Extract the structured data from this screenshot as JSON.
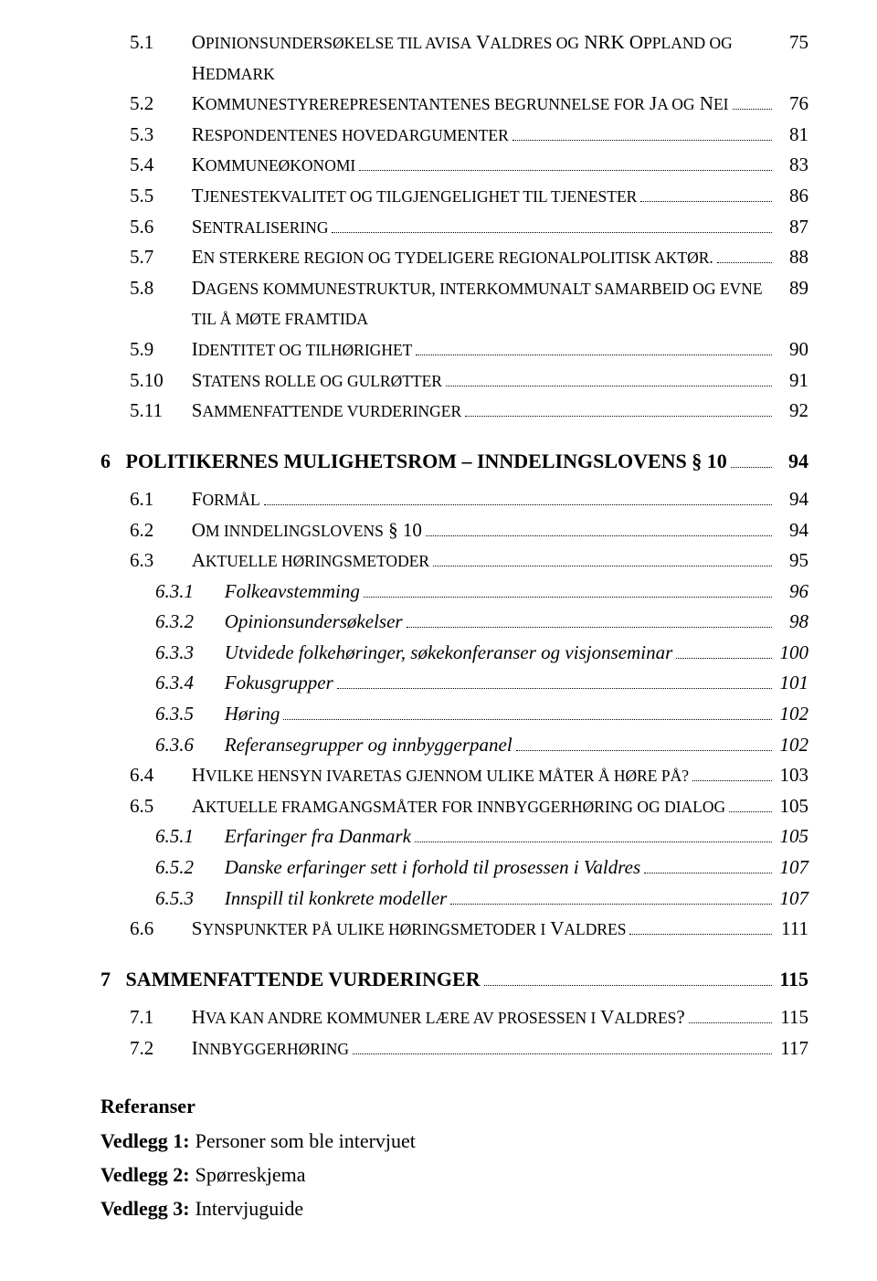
{
  "toc": [
    {
      "level": "section",
      "num": "5.1",
      "title_html": "O<small>PINIONSUNDERSØKELSE TIL AVISA</small> V<small>ALDRES OG</small> NRK O<small>PPLAND OG</small> H<small>EDMARK</small>",
      "page": "75"
    },
    {
      "level": "section",
      "num": "5.2",
      "title_html": "K<small>OMMUNESTYREREPRESENTANTENES BEGRUNNELSE FOR</small> J<small>A OG</small> N<small>EI</small>",
      "page": "76"
    },
    {
      "level": "section",
      "num": "5.3",
      "title_html": "R<small>ESPONDENTENES HOVEDARGUMENTER</small>",
      "page": "81"
    },
    {
      "level": "section",
      "num": "5.4",
      "title_html": "K<small>OMMUNEØKONOMI</small>",
      "page": "83"
    },
    {
      "level": "section",
      "num": "5.5",
      "title_html": "T<small>JENESTEKVALITET OG TILGJENGELIGHET TIL TJENESTER</small>",
      "page": "86"
    },
    {
      "level": "section",
      "num": "5.6",
      "title_html": "S<small>ENTRALISERING</small>",
      "page": "87"
    },
    {
      "level": "section",
      "num": "5.7",
      "title_html": "E<small>N STERKERE REGION OG TYDELIGERE REGIONALPOLITISK AKTØR.</small>",
      "page": "88"
    },
    {
      "level": "section",
      "num": "5.8",
      "title_html": "D<small>AGENS KOMMUNESTRUKTUR, INTERKOMMUNALT SAMARBEID OG EVNE TIL Å MØTE FRAMTIDA</small>",
      "page": "89"
    },
    {
      "level": "section",
      "num": "5.9",
      "title_html": "I<small>DENTITET OG TILHØRIGHET</small>",
      "page": "90"
    },
    {
      "level": "section",
      "num": "5.10",
      "title_html": "S<small>TATENS ROLLE OG GULRØTTER</small>",
      "page": "91"
    },
    {
      "level": "section",
      "num": "5.11",
      "title_html": "S<small>AMMENFATTENDE VURDERINGER</small>",
      "page": "92"
    },
    {
      "level": "chapter",
      "num": "6",
      "title_html": "POLITIKERNES MULIGHETSROM – INNDELINGSLOVENS § 10",
      "page": "94"
    },
    {
      "level": "section",
      "num": "6.1",
      "title_html": "F<small>ORMÅL</small>",
      "page": "94"
    },
    {
      "level": "section",
      "num": "6.2",
      "title_html": "O<small>M INNDELINGSLOVENS</small> § 10",
      "page": "94"
    },
    {
      "level": "section",
      "num": "6.3",
      "title_html": "A<small>KTUELLE HØRINGSMETODER</small>",
      "page": "95"
    },
    {
      "level": "subsection",
      "num": "6.3.1",
      "title_html": "Folkeavstemming",
      "page": "96"
    },
    {
      "level": "subsection",
      "num": "6.3.2",
      "title_html": "Opinionsundersøkelser",
      "page": "98"
    },
    {
      "level": "subsection",
      "num": "6.3.3",
      "title_html": "Utvidede folkehøringer, søkekonferanser og visjonseminar",
      "page": "100"
    },
    {
      "level": "subsection",
      "num": "6.3.4",
      "title_html": "Fokusgrupper",
      "page": "101"
    },
    {
      "level": "subsection",
      "num": "6.3.5",
      "title_html": "Høring",
      "page": "102"
    },
    {
      "level": "subsection",
      "num": "6.3.6",
      "title_html": "Referansegrupper og innbyggerpanel",
      "page": "102"
    },
    {
      "level": "section",
      "num": "6.4",
      "title_html": "H<small>VILKE HENSYN IVARETAS GJENNOM ULIKE MÅTER Å HØRE PÅ?</small>",
      "page": "103"
    },
    {
      "level": "section",
      "num": "6.5",
      "title_html": "A<small>KTUELLE FRAMGANGSMÅTER FOR INNBYGGERHØRING OG DIALOG</small>",
      "page": "105"
    },
    {
      "level": "subsection",
      "num": "6.5.1",
      "title_html": "Erfaringer fra Danmark",
      "page": "105"
    },
    {
      "level": "subsection",
      "num": "6.5.2",
      "title_html": "Danske erfaringer sett i forhold til prosessen i Valdres",
      "page": "107"
    },
    {
      "level": "subsection",
      "num": "6.5.3",
      "title_html": "Innspill til konkrete modeller",
      "page": "107"
    },
    {
      "level": "section",
      "num": "6.6",
      "title_html": "S<small>YNSPUNKTER PÅ ULIKE HØRINGSMETODER I</small> V<small>ALDRES</small>",
      "page": "111"
    },
    {
      "level": "chapter",
      "num": "7",
      "title_html": "SAMMENFATTENDE VURDERINGER",
      "page": "115"
    },
    {
      "level": "section",
      "num": "7.1",
      "title_html": "H<small>VA KAN ANDRE KOMMUNER LÆRE AV PROSESSEN I</small> V<small>ALDRES</small>?",
      "page": "115"
    },
    {
      "level": "section",
      "num": "7.2",
      "title_html": "I<small>NNBYGGERHØRING</small>",
      "page": "117"
    }
  ],
  "refs": {
    "title": "Referanser",
    "items": [
      {
        "key": "Vedlegg 1:",
        "val": "Personer som ble intervjuet"
      },
      {
        "key": "Vedlegg 2:",
        "val": "Spørreskjema"
      },
      {
        "key": "Vedlegg 3:",
        "val": "Intervjuguide"
      }
    ]
  }
}
